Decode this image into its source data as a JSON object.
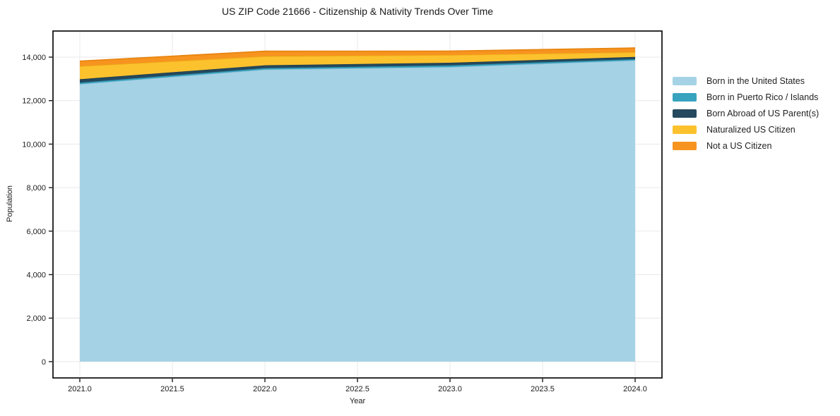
{
  "chart_data": {
    "type": "area",
    "stacked": true,
    "title": "US ZIP Code 21666 - Citizenship & Nativity Trends Over Time",
    "xlabel": "Year",
    "ylabel": "Population",
    "x": [
      2021,
      2022,
      2023,
      2024
    ],
    "series": [
      {
        "name": "Born in the United States",
        "values": [
          12760,
          13430,
          13545,
          13850
        ],
        "fill": "#a6d2e5",
        "line": "#8ec3da"
      },
      {
        "name": "Born in Puerto Rico / Islands",
        "values": [
          65,
          65,
          75,
          55
        ],
        "fill": "#38a3be",
        "line": "#2d93ae"
      },
      {
        "name": "Born Abroad of US Parent(s)",
        "values": [
          160,
          130,
          120,
          105
        ],
        "fill": "#25495e",
        "line": "#1d3c4e"
      },
      {
        "name": "Naturalized US Citizen",
        "values": [
          595,
          410,
          355,
          215
        ],
        "fill": "#fcc22e",
        "line": "#efb11c"
      },
      {
        "name": "Not a US Citizen",
        "values": [
          235,
          235,
          180,
          195
        ],
        "fill": "#f7941f",
        "line": "#e88410"
      }
    ],
    "xticks": {
      "values": [
        2021.0,
        2021.5,
        2022.0,
        2022.5,
        2023.0,
        2023.5,
        2024.0
      ],
      "labels": [
        "2021.0",
        "2021.5",
        "2022.0",
        "2022.5",
        "2023.0",
        "2023.5",
        "2024.0"
      ]
    },
    "yticks": {
      "values": [
        0,
        2000,
        4000,
        6000,
        8000,
        10000,
        12000,
        14000
      ],
      "labels": [
        "0",
        "2,000",
        "4,000",
        "6,000",
        "8,000",
        "10,000",
        "12,000",
        "14,000"
      ]
    },
    "xlim": [
      2020.855,
      2024.145
    ],
    "ylim": [
      -750,
      15200
    ],
    "grid": true,
    "legend_position": "outside-right-upper"
  },
  "colors": {
    "grid": "#e8e8e8",
    "spine": "#1a1a1a",
    "tick": "#1a1a1a"
  }
}
